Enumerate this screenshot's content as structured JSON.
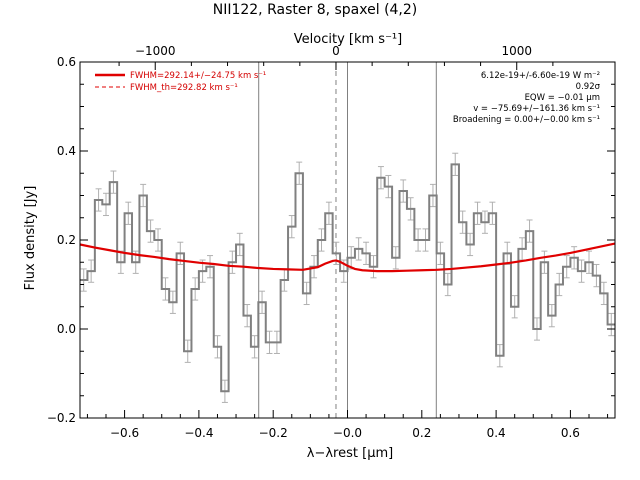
{
  "chart_data": {
    "type": "line",
    "title": "NII122, Raster 8, spaxel (4,2)",
    "xlabel": "λ−λrest [μm]",
    "ylabel": "Flux density [Jy]",
    "top_xlabel": "Velocity [km s⁻¹]",
    "xlim": [
      -0.72,
      0.72
    ],
    "ylim": [
      -0.2,
      0.6
    ],
    "x_ticks": [
      -0.6,
      -0.4,
      -0.2,
      0.0,
      0.2,
      0.4,
      0.6
    ],
    "x_tick_labels": [
      "−0.6",
      "−0.4",
      "−0.2",
      "−0.0",
      "0.2",
      "0.4",
      "0.6"
    ],
    "y_ticks": [
      -0.2,
      0.0,
      0.2,
      0.4,
      0.6
    ],
    "y_tick_labels": [
      "−0.2",
      "0.0",
      "0.2",
      "0.4",
      "0.6"
    ],
    "top_ticks_offset": [
      -0.4865,
      0.0,
      0.4865
    ],
    "top_tick_labels": [
      "−1000",
      "0",
      "1000"
    ],
    "vlines_solid": [
      -0.239,
      -0.0,
      0.239
    ],
    "vline_dashed": -0.031,
    "spectrum": {
      "x": [
        -0.71,
        -0.69,
        -0.67,
        -0.65,
        -0.63,
        -0.61,
        -0.59,
        -0.57,
        -0.55,
        -0.53,
        -0.51,
        -0.49,
        -0.47,
        -0.45,
        -0.43,
        -0.41,
        -0.39,
        -0.37,
        -0.35,
        -0.33,
        -0.31,
        -0.29,
        -0.27,
        -0.25,
        -0.23,
        -0.21,
        -0.19,
        -0.17,
        -0.15,
        -0.13,
        -0.11,
        -0.09,
        -0.07,
        -0.05,
        -0.03,
        -0.01,
        0.01,
        0.03,
        0.05,
        0.07,
        0.09,
        0.11,
        0.13,
        0.15,
        0.17,
        0.19,
        0.21,
        0.23,
        0.25,
        0.27,
        0.29,
        0.31,
        0.33,
        0.35,
        0.37,
        0.39,
        0.41,
        0.43,
        0.45,
        0.47,
        0.49,
        0.51,
        0.53,
        0.55,
        0.57,
        0.59,
        0.61,
        0.63,
        0.65,
        0.67,
        0.69,
        0.71
      ],
      "y": [
        0.11,
        0.13,
        0.29,
        0.28,
        0.33,
        0.15,
        0.26,
        0.15,
        0.3,
        0.22,
        0.2,
        0.09,
        0.06,
        0.17,
        -0.05,
        0.09,
        0.13,
        0.14,
        -0.04,
        -0.14,
        0.15,
        0.19,
        0.03,
        -0.04,
        0.06,
        -0.03,
        -0.03,
        0.11,
        0.23,
        0.35,
        0.08,
        0.14,
        0.2,
        0.26,
        0.17,
        0.13,
        0.16,
        0.18,
        0.17,
        0.14,
        0.34,
        0.32,
        0.16,
        0.31,
        0.27,
        0.2,
        0.2,
        0.3,
        0.17,
        0.1,
        0.37,
        0.24,
        0.19,
        0.26,
        0.24,
        0.26,
        -0.06,
        0.17,
        0.05,
        0.18,
        0.22,
        0.0,
        0.15,
        0.03,
        0.1,
        0.14,
        0.16,
        0.13,
        0.15,
        0.12,
        0.08,
        0.01
      ],
      "err": 0.025
    },
    "series": [
      {
        "name": "FWHM=292.14+/−24.75 km s⁻¹",
        "style": "solid",
        "color": "#e00000",
        "x": [
          -0.72,
          -0.68,
          -0.64,
          -0.6,
          -0.56,
          -0.52,
          -0.48,
          -0.44,
          -0.4,
          -0.36,
          -0.32,
          -0.28,
          -0.24,
          -0.2,
          -0.16,
          -0.12,
          -0.08,
          -0.06,
          -0.04,
          -0.031,
          -0.02,
          0.0,
          0.02,
          0.04,
          0.08,
          0.12,
          0.16,
          0.2,
          0.24,
          0.28,
          0.32,
          0.36,
          0.4,
          0.44,
          0.48,
          0.52,
          0.56,
          0.6,
          0.64,
          0.68,
          0.72
        ],
        "y": [
          0.19,
          0.183,
          0.177,
          0.171,
          0.166,
          0.162,
          0.157,
          0.153,
          0.149,
          0.146,
          0.142,
          0.14,
          0.137,
          0.135,
          0.134,
          0.133,
          0.139,
          0.147,
          0.153,
          0.154,
          0.151,
          0.142,
          0.135,
          0.132,
          0.13,
          0.13,
          0.131,
          0.132,
          0.133,
          0.135,
          0.138,
          0.141,
          0.145,
          0.149,
          0.154,
          0.16,
          0.165,
          0.171,
          0.178,
          0.185,
          0.192
        ]
      },
      {
        "name": "FWHM_th=292.82 km s⁻¹",
        "style": "dashed",
        "color": "#e00000",
        "x": [
          -0.72,
          -0.68,
          -0.64,
          -0.6,
          -0.56,
          -0.52,
          -0.48,
          -0.44,
          -0.4,
          -0.36,
          -0.32,
          -0.28,
          -0.24,
          -0.2,
          -0.16,
          -0.12,
          -0.08,
          -0.06,
          -0.04,
          -0.031,
          -0.02,
          0.0,
          0.02,
          0.04,
          0.08,
          0.12,
          0.16,
          0.2,
          0.24,
          0.28,
          0.32,
          0.36,
          0.4,
          0.44,
          0.48,
          0.52,
          0.56,
          0.6,
          0.64,
          0.68,
          0.72
        ],
        "y": [
          0.19,
          0.183,
          0.177,
          0.171,
          0.166,
          0.162,
          0.157,
          0.153,
          0.149,
          0.146,
          0.142,
          0.14,
          0.137,
          0.135,
          0.134,
          0.133,
          0.139,
          0.147,
          0.153,
          0.154,
          0.151,
          0.142,
          0.135,
          0.132,
          0.13,
          0.13,
          0.131,
          0.132,
          0.133,
          0.135,
          0.138,
          0.141,
          0.145,
          0.149,
          0.154,
          0.16,
          0.165,
          0.171,
          0.178,
          0.185,
          0.192
        ]
      }
    ],
    "legend_position": "top-left",
    "annotations": [
      "6.12e-19+/-6.60e-19 W m⁻²",
      "0.92σ",
      "EQW = −0.01 μm",
      "v = −75.69+/−161.36 km s⁻¹",
      "Broadening = 0.00+/−0.00 km s⁻¹"
    ],
    "colors": {
      "spectrum": "#808080",
      "error": "#b0b0b0",
      "fit": "#e00000",
      "vline": "#808080"
    }
  }
}
